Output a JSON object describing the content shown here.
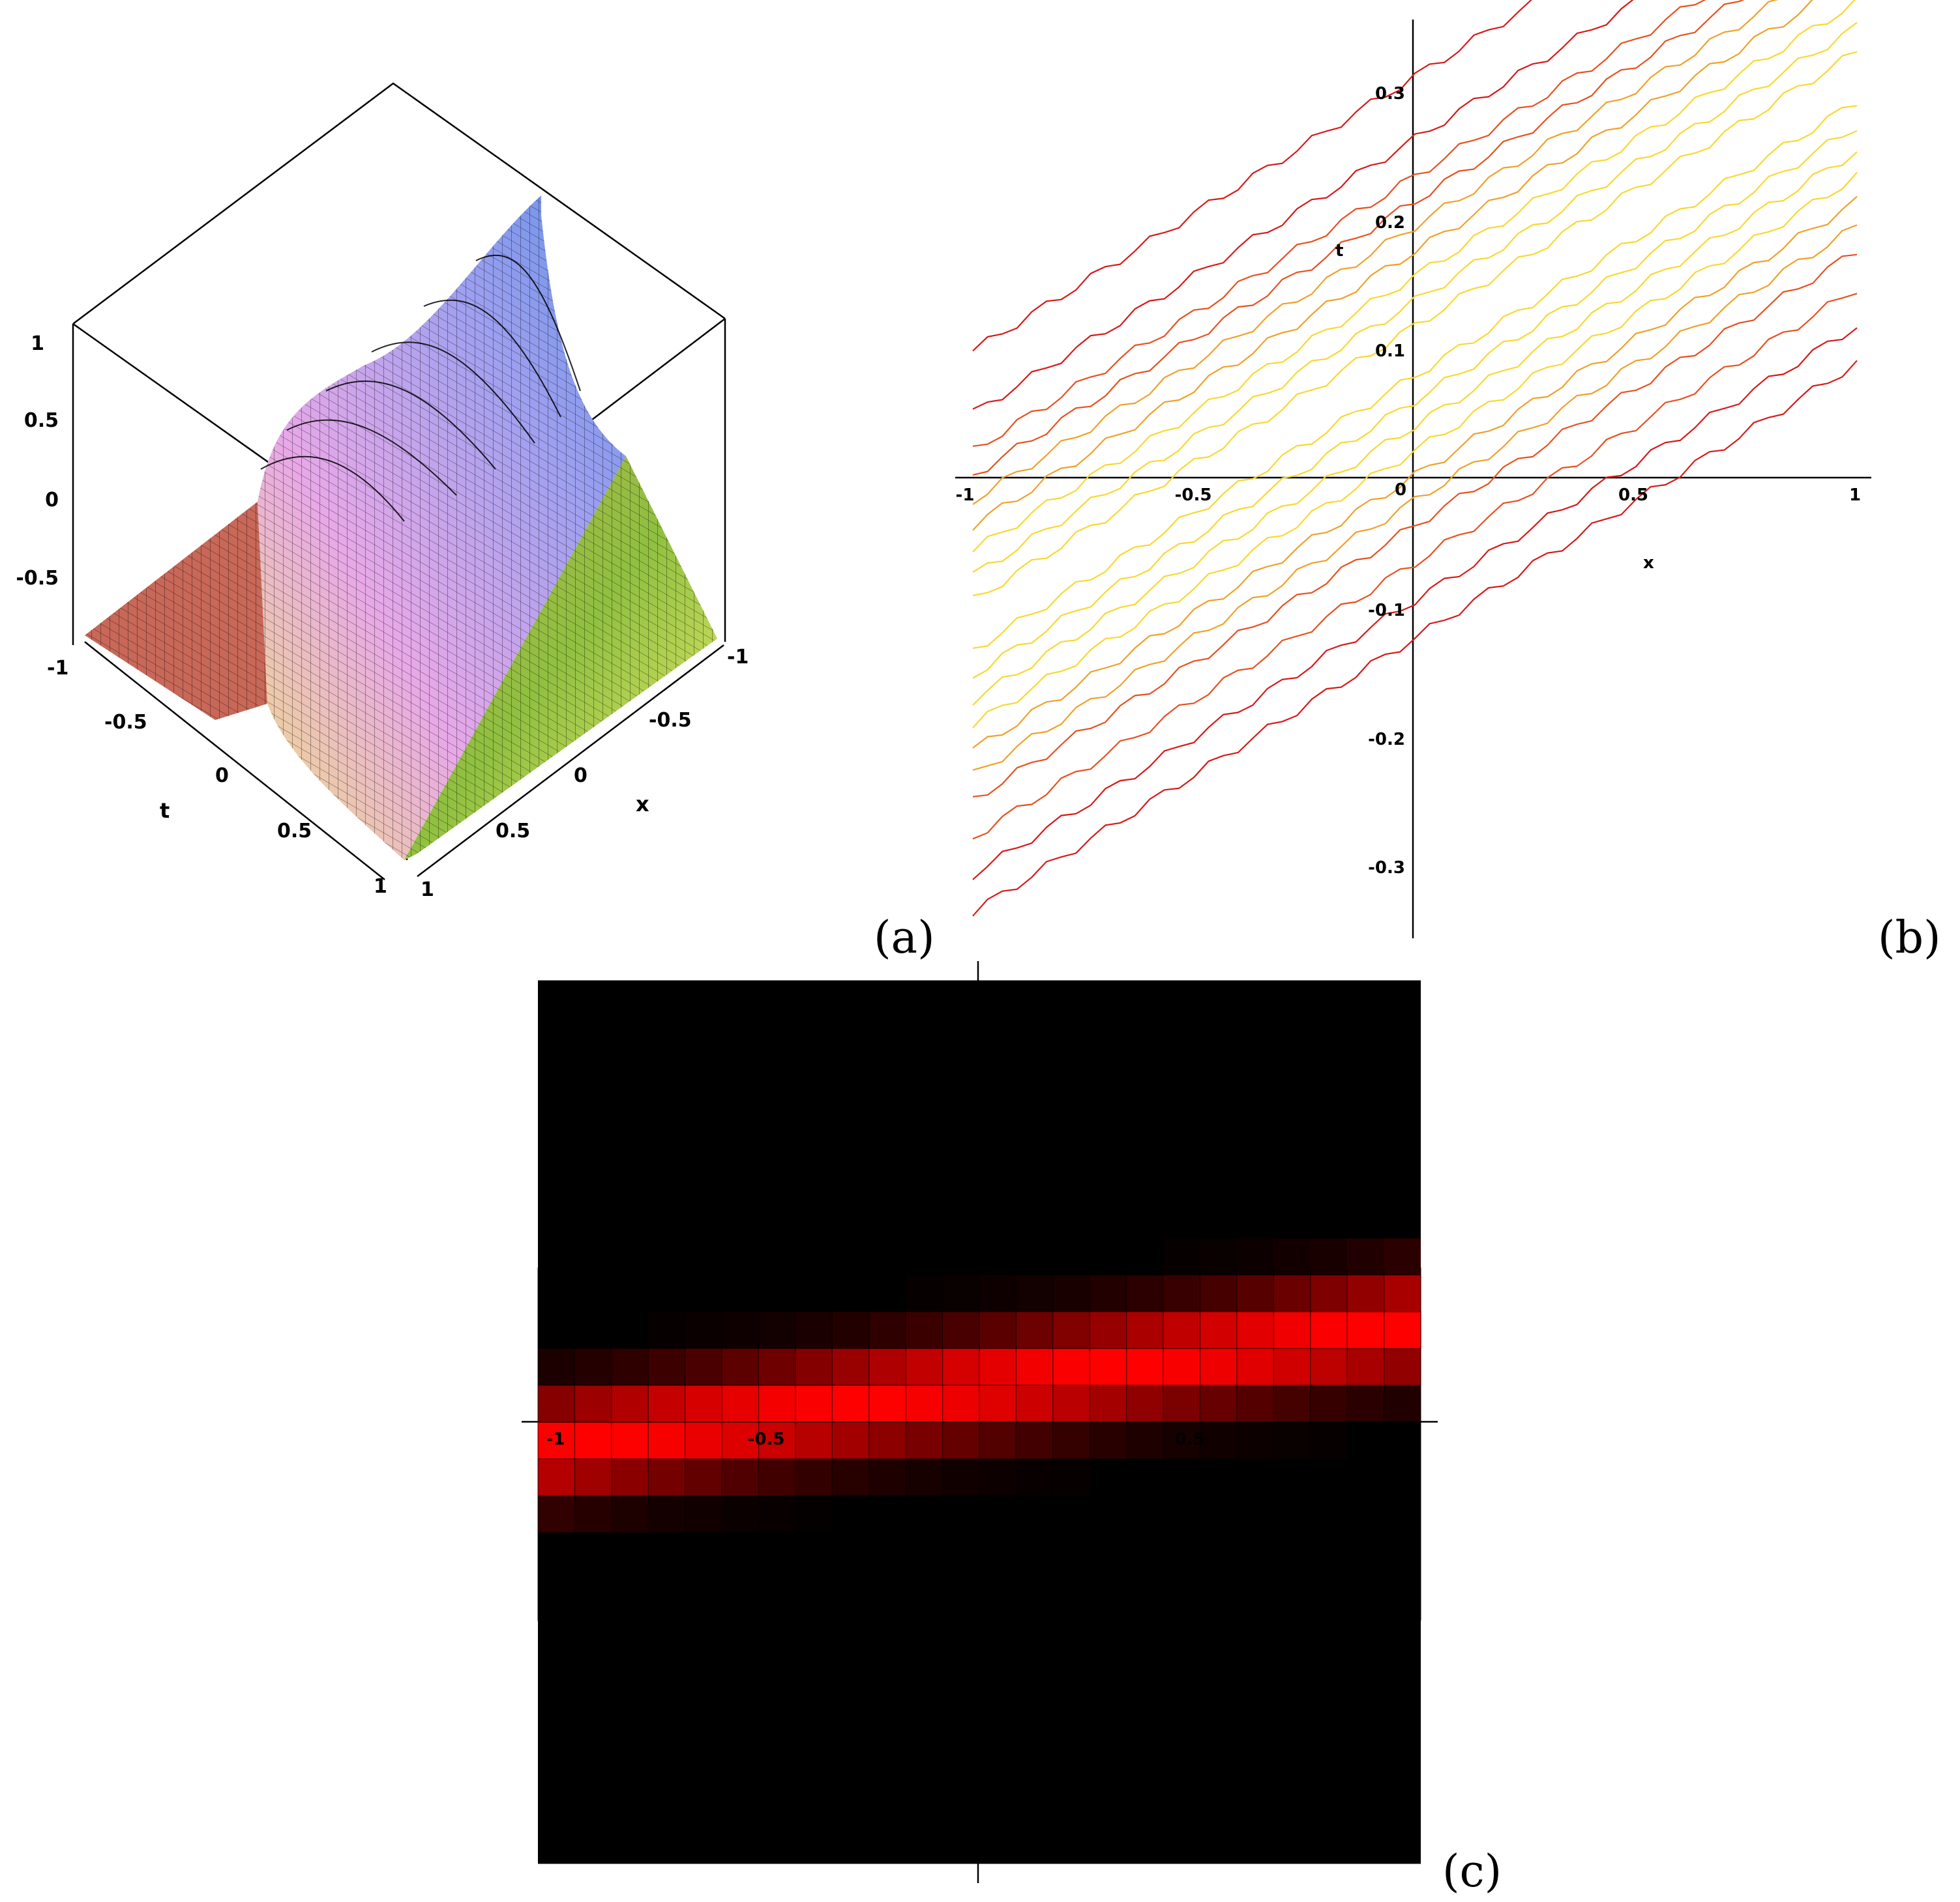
{
  "chart_data": [
    {
      "panel": "a",
      "type": "surface3d",
      "panel_label": "(a)",
      "axes": {
        "x": {
          "label": "x",
          "ticks": [
            "-1",
            "-0.5",
            "0",
            "0.5",
            "1"
          ],
          "range": [
            -1,
            1
          ]
        },
        "t": {
          "label": "t",
          "ticks": [
            "-1",
            "-0.5",
            "0",
            "0.5",
            "1"
          ],
          "range": [
            -1,
            1
          ]
        },
        "z": {
          "ticks": [
            "1",
            "0.5",
            "0",
            "-0.5"
          ],
          "range": [
            -1,
            1
          ]
        }
      }
    },
    {
      "panel": "b",
      "type": "contour",
      "panel_label": "(b)",
      "axes": {
        "x": {
          "label": "x",
          "ticks": [
            "-1",
            "-0.5",
            "0",
            "0.5",
            "1"
          ],
          "range": [
            -1,
            1
          ]
        },
        "t": {
          "label": "t",
          "ticks": [
            "0.3",
            "0.2",
            "0.1",
            "-0.1",
            "-0.2",
            "-0.3"
          ],
          "range": [
            -0.35,
            0.35
          ]
        }
      },
      "contour_intercepts_at_x_minus1": [
        0.1,
        0.05,
        0.02,
        0.0,
        -0.02,
        -0.04,
        -0.06,
        -0.08,
        -0.1,
        -0.14,
        -0.16,
        -0.18,
        -0.2,
        -0.22,
        -0.24,
        -0.26,
        -0.29,
        -0.32,
        -0.35
      ],
      "slope": 0.22,
      "colors": [
        "#d81818",
        "#e8501e",
        "#f0a028",
        "#f8d830"
      ]
    },
    {
      "panel": "c",
      "type": "density",
      "panel_label": "(c)",
      "axes": {
        "x": {
          "ticks": [
            "-1",
            "-0.5",
            "0.5",
            "1"
          ],
          "range": [
            -1,
            1
          ]
        }
      },
      "background_color": "#000000",
      "band_color": "#ff0000",
      "band_center_at_x_minus1": -0.06,
      "band_slope": 0.14
    }
  ]
}
